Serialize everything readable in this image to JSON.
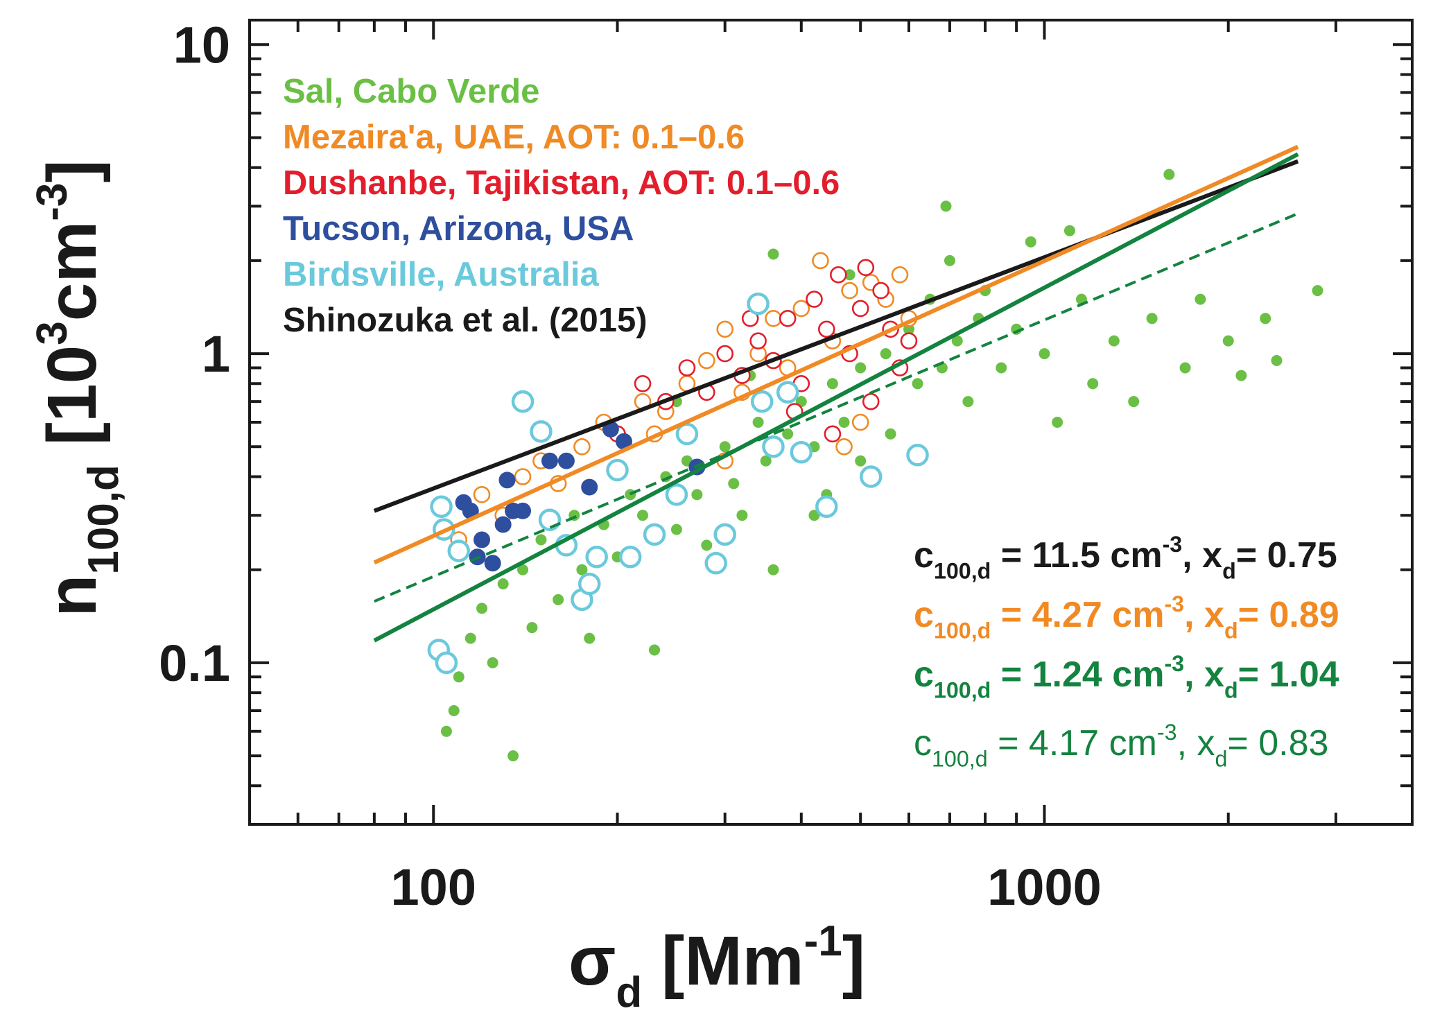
{
  "chart_data": {
    "type": "scatter",
    "log_x": true,
    "log_y": true,
    "xlim": [
      50,
      4000
    ],
    "ylim": [
      0.03,
      12
    ],
    "xticks": [
      100,
      1000
    ],
    "yticks": [
      0.1,
      1,
      10
    ],
    "x_minor_ticks": [
      60,
      70,
      80,
      90,
      200,
      300,
      400,
      500,
      600,
      700,
      800,
      900,
      2000,
      3000
    ],
    "y_minor_ticks": [
      0.04,
      0.05,
      0.06,
      0.07,
      0.08,
      0.09,
      0.2,
      0.3,
      0.4,
      0.5,
      0.6,
      0.7,
      0.8,
      0.9,
      2,
      3,
      4,
      5,
      6,
      7,
      8,
      9
    ],
    "x_label": [
      {
        "text": "σ"
      },
      {
        "text": "d",
        "pos": "sub"
      },
      {
        "text": " [Mm"
      },
      {
        "text": "-1",
        "pos": "sup"
      },
      {
        "text": "]"
      }
    ],
    "y_label": [
      {
        "text": "n"
      },
      {
        "text": "100,d",
        "pos": "sub"
      },
      {
        "text": " [10"
      },
      {
        "text": "3",
        "pos": "sup"
      },
      {
        "text": "cm"
      },
      {
        "text": "-3",
        "pos": "sup"
      },
      {
        "text": "]"
      }
    ],
    "legend": "upper left",
    "series": [
      {
        "name": "Sal, Cabo Verde",
        "color": "#6abf45",
        "marker": "filled",
        "x": [
          105,
          108,
          110,
          115,
          120,
          125,
          130,
          135,
          140,
          145,
          150,
          160,
          170,
          175,
          180,
          190,
          200,
          210,
          220,
          230,
          240,
          250,
          260,
          270,
          280,
          300,
          310,
          320,
          340,
          350,
          360,
          380,
          400,
          420,
          450,
          470,
          500,
          520,
          550,
          600,
          620,
          650,
          680,
          700,
          720,
          750,
          780,
          800,
          850,
          900,
          950,
          1000,
          1050,
          1100,
          1150,
          1200,
          1300,
          1400,
          1500,
          1600,
          1700,
          1800,
          2000,
          2100,
          2300,
          2400,
          2800,
          690,
          480,
          360,
          500,
          420,
          250,
          330,
          560,
          440
        ],
        "values": [
          0.06,
          0.07,
          0.09,
          0.12,
          0.15,
          0.1,
          0.18,
          0.05,
          0.2,
          0.13,
          0.25,
          0.16,
          0.3,
          0.2,
          0.12,
          0.28,
          0.22,
          0.35,
          0.3,
          0.11,
          0.4,
          0.27,
          0.45,
          0.35,
          0.24,
          0.5,
          0.38,
          0.3,
          0.6,
          0.45,
          0.2,
          0.55,
          0.7,
          0.5,
          0.8,
          0.6,
          0.9,
          0.7,
          1.0,
          1.2,
          0.8,
          1.5,
          0.9,
          2.0,
          1.1,
          0.7,
          1.3,
          1.6,
          0.9,
          1.2,
          2.3,
          1.0,
          0.6,
          2.5,
          1.5,
          0.8,
          1.1,
          0.7,
          1.3,
          3.8,
          0.9,
          1.5,
          1.1,
          0.85,
          1.3,
          0.95,
          1.6,
          3.0,
          1.8,
          2.1,
          0.45,
          0.3,
          0.7,
          0.85,
          0.55,
          0.35
        ]
      },
      {
        "name": "Mezaira'a, UAE, AOT: 0.1–0.6",
        "color": "#f08a24",
        "marker": "open",
        "x": [
          110,
          120,
          130,
          140,
          150,
          160,
          175,
          190,
          200,
          220,
          230,
          240,
          260,
          280,
          300,
          320,
          340,
          360,
          380,
          400,
          430,
          450,
          480,
          500,
          520,
          550,
          580,
          600,
          470,
          300
        ],
        "values": [
          0.25,
          0.35,
          0.3,
          0.4,
          0.45,
          0.38,
          0.5,
          0.6,
          0.42,
          0.7,
          0.55,
          0.65,
          0.8,
          0.95,
          1.2,
          0.75,
          1.0,
          1.3,
          0.9,
          1.4,
          2.0,
          1.1,
          1.6,
          0.6,
          1.7,
          1.5,
          1.8,
          1.3,
          0.5,
          0.45
        ]
      },
      {
        "name": "Dushanbe, Tajikistan, AOT: 0.1–0.6",
        "color": "#e31e2c",
        "marker": "open",
        "x": [
          200,
          220,
          240,
          260,
          280,
          300,
          320,
          340,
          360,
          380,
          400,
          420,
          440,
          460,
          480,
          500,
          520,
          540,
          560,
          580,
          600,
          450,
          390,
          330,
          510
        ],
        "values": [
          0.55,
          0.8,
          0.7,
          0.9,
          0.75,
          1.0,
          0.85,
          1.1,
          0.95,
          1.3,
          0.8,
          1.5,
          1.2,
          1.8,
          1.0,
          1.4,
          0.7,
          1.6,
          1.2,
          0.9,
          1.1,
          0.55,
          0.65,
          1.3,
          1.9
        ]
      },
      {
        "name": "Birdsville, Australia",
        "color": "#6bc9dc",
        "marker": "open-large",
        "x": [
          102,
          105,
          103,
          104,
          110,
          140,
          150,
          155,
          165,
          175,
          180,
          185,
          200,
          210,
          230,
          250,
          260,
          290,
          300,
          340,
          345,
          360,
          380,
          400,
          440,
          520,
          620
        ],
        "values": [
          0.11,
          0.1,
          0.32,
          0.27,
          0.23,
          0.7,
          0.56,
          0.29,
          0.24,
          0.16,
          0.18,
          0.22,
          0.42,
          0.22,
          0.26,
          0.35,
          0.55,
          0.21,
          0.26,
          1.45,
          0.7,
          0.5,
          0.75,
          0.48,
          0.32,
          0.4,
          0.47
        ]
      },
      {
        "name": "Tucson, Arizona, USA",
        "color": "#2e4e9e",
        "marker": "filled-large",
        "x": [
          112,
          115,
          118,
          120,
          125,
          130,
          132,
          135,
          140,
          155,
          165,
          180,
          195,
          205,
          270
        ],
        "values": [
          0.33,
          0.31,
          0.22,
          0.25,
          0.21,
          0.28,
          0.39,
          0.31,
          0.31,
          0.45,
          0.45,
          0.37,
          0.57,
          0.52,
          0.43
        ]
      }
    ],
    "legend_order": [
      0,
      1,
      2,
      4,
      3
    ],
    "lines": [
      {
        "name": "Shinozuka et al. (2015)",
        "color": "#1a1a1a",
        "dashed": false,
        "x": [
          80,
          2600
        ],
        "values": [
          0.31,
          4.19
        ]
      },
      {
        "color": "#f08a24",
        "dashed": false,
        "x": [
          80,
          2600
        ],
        "values": [
          0.211,
          4.67
        ]
      },
      {
        "color": "#13833f",
        "dashed": false,
        "x": [
          80,
          2600
        ],
        "values": [
          0.118,
          4.42
        ]
      },
      {
        "color": "#13833f",
        "dashed": true,
        "x": [
          80,
          2600
        ],
        "values": [
          0.158,
          2.84
        ]
      }
    ],
    "annotations": [
      {
        "color": "#1a1a1a",
        "bold": true,
        "parts": [
          {
            "text": "c"
          },
          {
            "text": "100,d",
            "pos": "sub"
          },
          {
            "text": " = 11.5 cm"
          },
          {
            "text": "-3",
            "pos": "sup"
          },
          {
            "text": ", x"
          },
          {
            "text": "d",
            "pos": "sub"
          },
          {
            "text": "= 0.75"
          }
        ]
      },
      {
        "color": "#f08a24",
        "bold": true,
        "parts": [
          {
            "text": "c"
          },
          {
            "text": "100,d",
            "pos": "sub"
          },
          {
            "text": " = 4.27 cm"
          },
          {
            "text": "-3",
            "pos": "sup"
          },
          {
            "text": ", x"
          },
          {
            "text": "d",
            "pos": "sub"
          },
          {
            "text": "= 0.89"
          }
        ]
      },
      {
        "color": "#13833f",
        "bold": true,
        "parts": [
          {
            "text": "c"
          },
          {
            "text": "100,d",
            "pos": "sub"
          },
          {
            "text": " = 1.24 cm"
          },
          {
            "text": "-3",
            "pos": "sup"
          },
          {
            "text": ", x"
          },
          {
            "text": "d",
            "pos": "sub"
          },
          {
            "text": "= 1.04"
          }
        ]
      },
      {
        "color": "#13833f",
        "bold": false,
        "parts": [
          {
            "text": "c"
          },
          {
            "text": "100,d",
            "pos": "sub"
          },
          {
            "text": " = 4.17 cm"
          },
          {
            "text": "-3",
            "pos": "sup"
          },
          {
            "text": ", x"
          },
          {
            "text": "d",
            "pos": "sub"
          },
          {
            "text": "= 0.83"
          }
        ]
      }
    ]
  }
}
